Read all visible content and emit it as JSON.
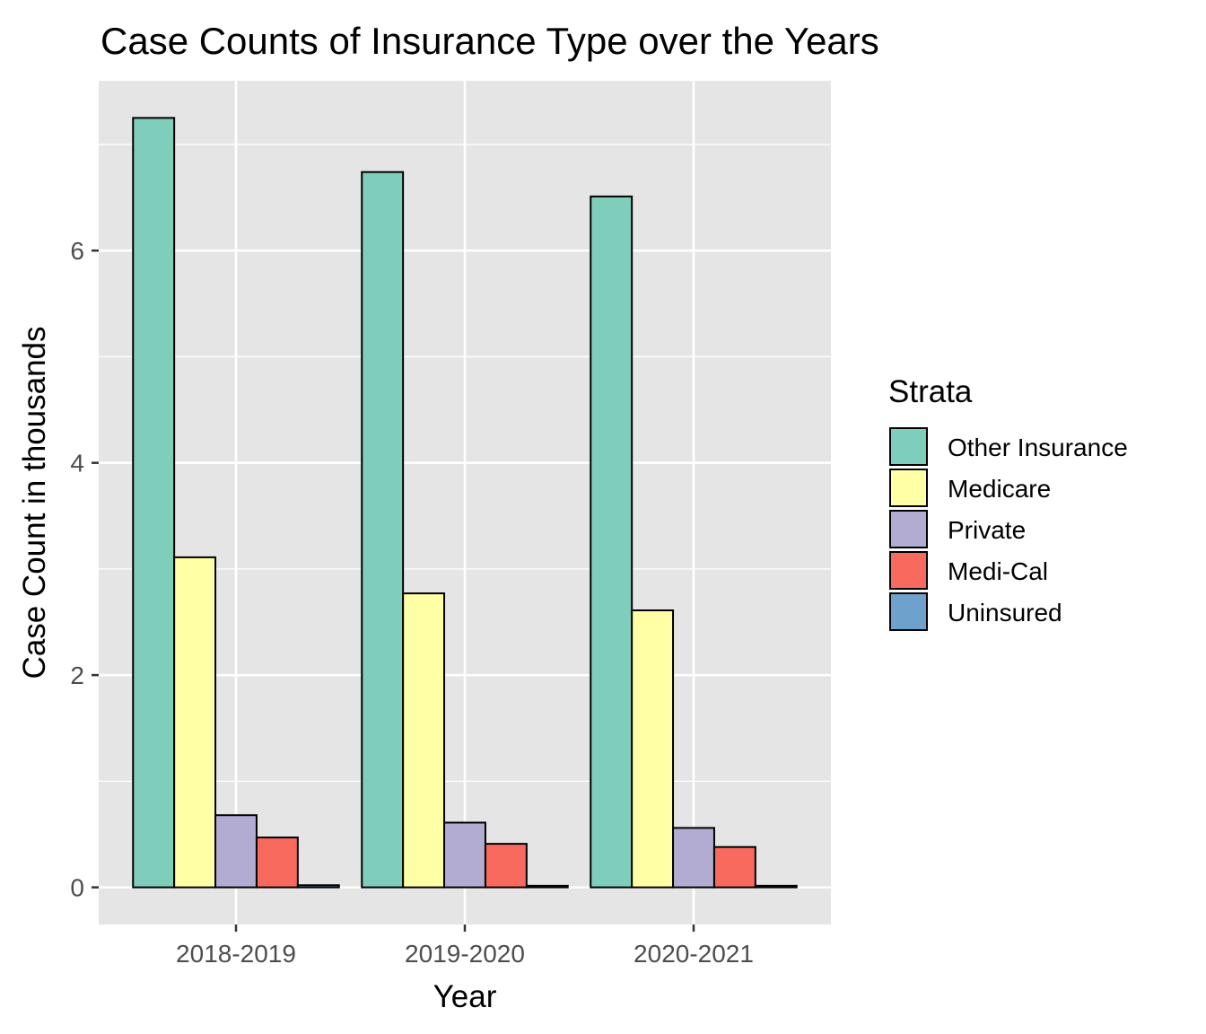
{
  "chart_data": {
    "type": "bar",
    "title": "Case Counts of Insurance Type over the Years",
    "xlabel": "Year",
    "ylabel": "Case Count in thousands",
    "categories": [
      "2018-2019",
      "2019-2020",
      "2020-2021"
    ],
    "ylim": [
      -0.35,
      7.6
    ],
    "yticks": [
      0,
      2,
      4,
      6
    ],
    "yticks_labels": [
      "0",
      "2",
      "4",
      "6"
    ],
    "grid": true,
    "legend": {
      "title": "Strata",
      "position": "right"
    },
    "series": [
      {
        "name": "Other Insurance",
        "color": "#7fcdbb",
        "values": [
          7.25,
          6.74,
          6.51
        ]
      },
      {
        "name": "Medicare",
        "color": "#ffffa6",
        "values": [
          3.11,
          2.77,
          2.61
        ]
      },
      {
        "name": "Private",
        "color": "#b2abd2",
        "values": [
          0.68,
          0.61,
          0.56
        ]
      },
      {
        "name": "Medi-Cal",
        "color": "#f8695e",
        "values": [
          0.47,
          0.41,
          0.38
        ]
      },
      {
        "name": "Uninsured",
        "color": "#6ea2cd",
        "values": [
          0.02,
          0.015,
          0.015
        ]
      }
    ],
    "colors": {
      "panel_background": "#e5e5e5",
      "gridline": "#ffffff",
      "bar_outline": "#000000"
    }
  }
}
